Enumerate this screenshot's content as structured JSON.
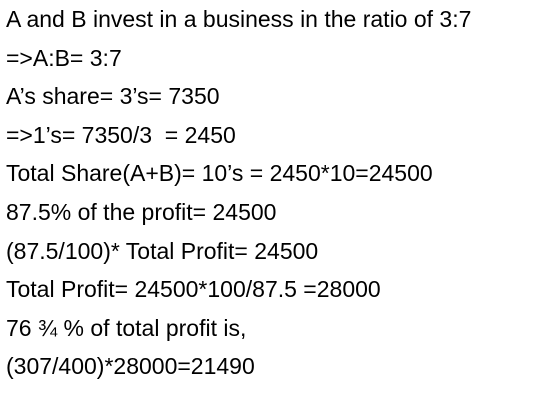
{
  "document": {
    "lines": [
      "A and B invest in a business in the ratio of 3:7",
      "=>A:B= 3:7",
      "A’s share= 3’s= 7350",
      "=>1’s= 7350/3  = 2450",
      "Total Share(A+B)= 10’s = 2450*10=24500",
      "87.5% of the profit= 24500",
      "(87.5/100)* Total Profit= 24500",
      "Total Profit= 24500*100/87.5 =28000",
      "76 ¾ % of total profit is,",
      "(307/400)*28000=21490"
    ]
  }
}
